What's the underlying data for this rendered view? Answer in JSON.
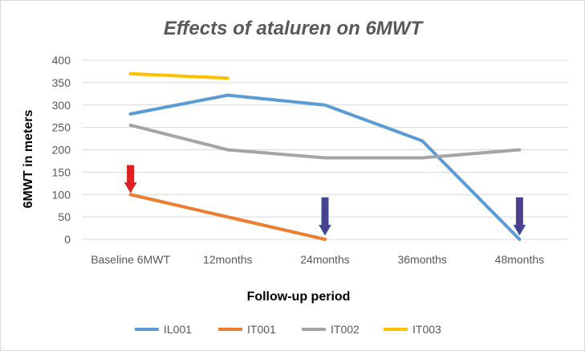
{
  "chart_data": {
    "type": "line",
    "title": "Effects of ataluren on 6MWT",
    "xlabel": "Follow-up period",
    "ylabel": "6MWT in meters",
    "categories": [
      "Baseline 6MWT",
      "12months",
      "24months",
      "36months",
      "48months"
    ],
    "yticks": [
      0,
      50,
      100,
      150,
      200,
      250,
      300,
      350,
      400
    ],
    "ylim": [
      0,
      400
    ],
    "grid": true,
    "legend_position": "bottom",
    "series": [
      {
        "name": "IL001",
        "color": "#5b9bd5",
        "values": [
          280,
          322,
          300,
          220,
          0
        ]
      },
      {
        "name": "IT001",
        "color": "#ed7d31",
        "values": [
          100,
          50,
          0,
          null,
          null
        ]
      },
      {
        "name": "IT002",
        "color": "#a5a5a5",
        "values": [
          255,
          200,
          182,
          182,
          200
        ]
      },
      {
        "name": "IT003",
        "color": "#ffc000",
        "values": [
          370,
          360,
          null,
          null,
          null
        ]
      }
    ],
    "annotations": [
      {
        "type": "arrow",
        "name": "red-arrow",
        "category_index": 0,
        "from_value": 165,
        "to_value": 105,
        "color": "#e02020"
      },
      {
        "type": "arrow",
        "name": "purple-arrow",
        "category_index": 2,
        "from_value": 93,
        "to_value": 10,
        "color": "#4b3f8f"
      },
      {
        "type": "arrow",
        "name": "purple-arrow",
        "category_index": 4,
        "from_value": 93,
        "to_value": 10,
        "color": "#4b3f8f"
      }
    ]
  }
}
